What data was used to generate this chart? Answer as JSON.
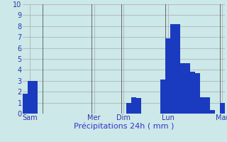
{
  "bar_values": [
    1.8,
    3.0,
    3.0,
    0,
    0,
    0,
    0,
    0,
    0,
    0,
    0,
    0,
    0,
    0,
    0,
    0,
    0,
    0,
    0,
    0,
    0,
    1.0,
    1.5,
    1.4,
    0,
    0,
    0,
    0,
    3.1,
    6.9,
    8.2,
    8.2,
    4.6,
    4.6,
    3.8,
    3.7,
    1.5,
    1.5,
    0.3,
    0,
    1.0
  ],
  "bar_color": "#1a3bbf",
  "bg_color": "#cce8e8",
  "grid_color": "#aaaaaa",
  "xlabel": "Précipitations 24h ( mm )",
  "xlabel_color": "#3333cc",
  "tick_label_color": "#3333aa",
  "day_labels": [
    "Sam",
    "Mer",
    "Dim",
    "Lun",
    "Mar"
  ],
  "day_positions": [
    1,
    14,
    20,
    29,
    40
  ],
  "ylim": [
    0,
    10
  ],
  "yticks": [
    0,
    1,
    2,
    3,
    4,
    5,
    6,
    7,
    8,
    9,
    10
  ],
  "vline_positions": [
    3.5,
    13.5,
    19.5,
    28.5,
    39.5
  ],
  "vline_color": "#666666",
  "n_bars": 41
}
